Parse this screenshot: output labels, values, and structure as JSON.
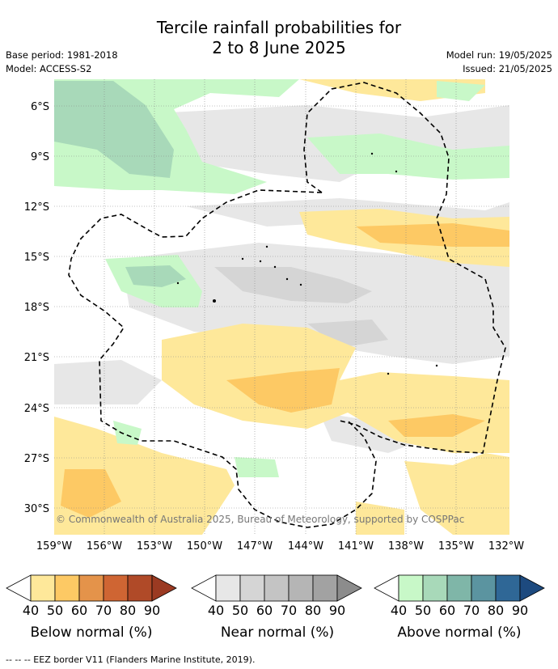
{
  "title_line1": "Tercile rainfall probabilities for",
  "title_line2": "2 to 8 June 2025",
  "base_period": "Base period: 1981-2018",
  "model": "Model: ACCESS-S2",
  "model_run": "Model run: 19/05/2025",
  "issued": "Issued: 21/05/2025",
  "copyright": "© Commonwealth of Australia 2025, Bureau of Meteorology, supported by COSPPac",
  "lat_ticks": [
    "6°S",
    "9°S",
    "12°S",
    "15°S",
    "18°S",
    "21°S",
    "24°S",
    "27°S",
    "30°S"
  ],
  "lon_ticks": [
    "159°W",
    "156°W",
    "153°W",
    "150°W",
    "147°W",
    "144°W",
    "141°W",
    "138°W",
    "135°W",
    "132°W"
  ],
  "legend": [
    {
      "label": "Below normal (%)",
      "ticks": [
        "40",
        "50",
        "60",
        "70",
        "80",
        "90"
      ],
      "colors": [
        "#fee89a",
        "#fdc964",
        "#e4934a",
        "#cf6533",
        "#b04a28",
        "#9b3a22"
      ]
    },
    {
      "label": "Near normal (%)",
      "ticks": [
        "40",
        "50",
        "60",
        "70",
        "80",
        "90"
      ],
      "colors": [
        "#e7e7e7",
        "#d5d5d5",
        "#c4c4c4",
        "#b5b5b5",
        "#a2a2a2",
        "#8c8c8c"
      ]
    },
    {
      "label": "Above normal (%)",
      "ticks": [
        "40",
        "50",
        "60",
        "70",
        "80",
        "90"
      ],
      "colors": [
        "#c8f8c8",
        "#a8d9b9",
        "#7fb6a8",
        "#5b94a0",
        "#2f6796",
        "#1d4a7f"
      ]
    }
  ],
  "eez_note": "-- -- -- EEZ border V11 (Flanders Marine Institute, 2019)."
}
